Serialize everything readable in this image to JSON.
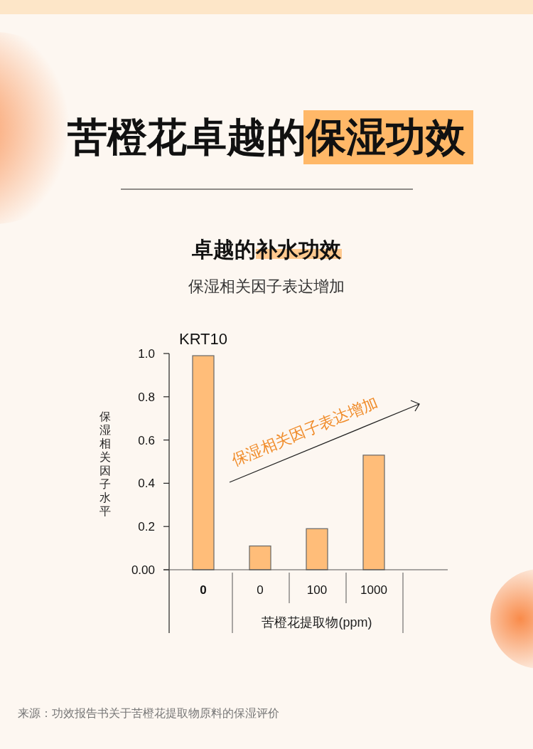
{
  "chart_data": {
    "type": "bar",
    "title": "苦橙花卓越的保湿功效",
    "subtitle": "卓越的补水功效",
    "ylabel": "保湿相关因子水平",
    "xlabel": "苦橙花提取物(ppm)",
    "categories": [
      "0",
      "0",
      "100",
      "1000"
    ],
    "values": [
      0.99,
      0.11,
      0.19,
      0.53
    ],
    "color": "#ffbd79",
    "ylim": [
      0,
      1
    ],
    "yticks": [
      {
        "value": 0,
        "label": "0.00"
      },
      0.2,
      0.4,
      0.6,
      0.8,
      {
        "value": 1,
        "label": "1.0"
      }
    ],
    "annotations": [
      "保湿相关因子表达增加",
      "KRT10",
      "保湿相关因子表达增加",
      "来源：功效报告书关于苦橙花提取物原料的保湿评价"
    ]
  }
}
